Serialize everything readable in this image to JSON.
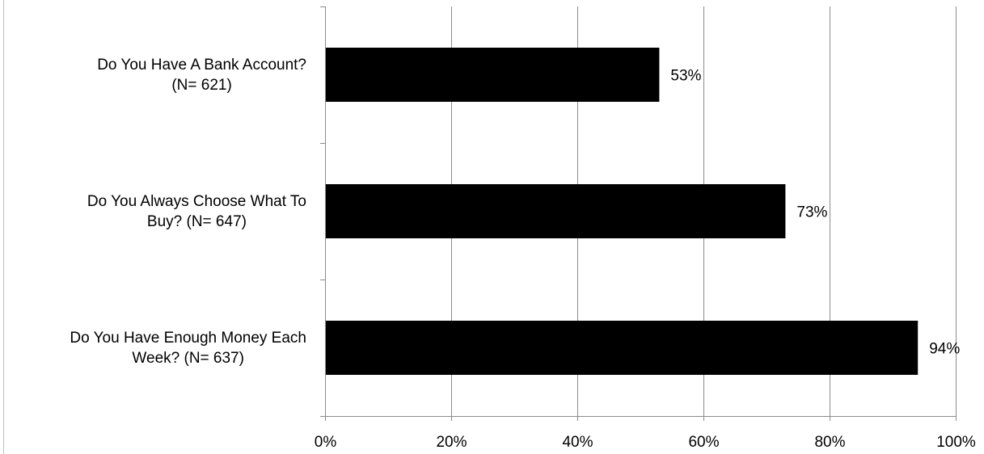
{
  "chart_data": {
    "type": "bar",
    "orientation": "horizontal",
    "categories": [
      [
        "Do You Have A Bank Account?",
        "(N= 621)"
      ],
      [
        "Do You Always Choose What To",
        "Buy? (N= 647)"
      ],
      [
        "Do You Have Enough Money Each",
        "Week? (N= 637)"
      ]
    ],
    "values": [
      53,
      73,
      94
    ],
    "data_labels": [
      "53%",
      "73%",
      "94%"
    ],
    "xlim": [
      0,
      100
    ],
    "x_ticks": [
      0,
      20,
      40,
      60,
      80,
      100
    ],
    "x_tick_labels": [
      "0%",
      "20%",
      "40%",
      "60%",
      "80%",
      "100%"
    ],
    "grid": true,
    "legend": "none",
    "colors": {
      "bar": "#000000",
      "grid": "#8c8c8c",
      "axis": "#8c8c8c",
      "text": "#000000"
    }
  }
}
